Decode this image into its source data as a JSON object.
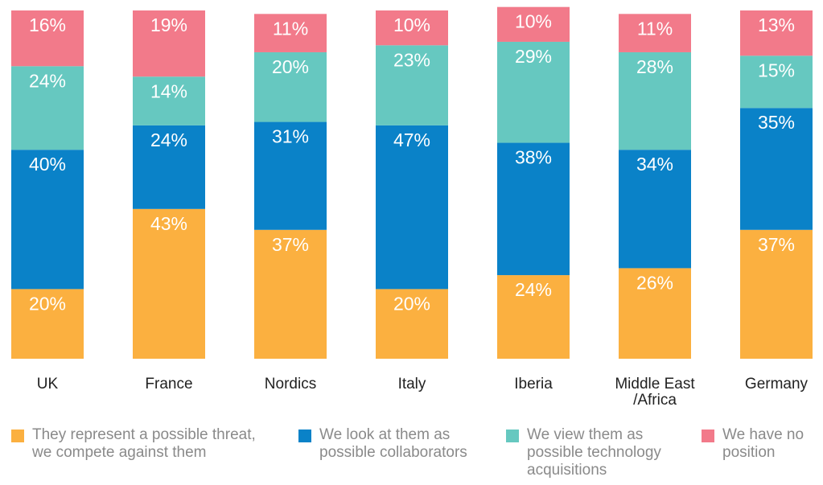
{
  "chart_data": {
    "type": "bar",
    "stacked": true,
    "percent": true,
    "categories": [
      "UK",
      "France",
      "Nordics",
      "Italy",
      "Iberia",
      "Middle East /Africa",
      "Germany"
    ],
    "category_lines": [
      [
        "UK"
      ],
      [
        "France"
      ],
      [
        "Nordics"
      ],
      [
        "Italy"
      ],
      [
        "Iberia"
      ],
      [
        "Middle East",
        "/Africa"
      ],
      [
        "Germany"
      ]
    ],
    "series": [
      {
        "name": "They represent a possible threat, we compete against them",
        "color": "#FBB040",
        "values": [
          20,
          43,
          37,
          20,
          24,
          26,
          37
        ]
      },
      {
        "name": "We look at them as possible collaborators",
        "color": "#0A82C8",
        "values": [
          40,
          24,
          31,
          47,
          38,
          34,
          35
        ]
      },
      {
        "name": "We view them as possible technology acquisitions",
        "color": "#66C8C0",
        "values": [
          24,
          14,
          20,
          23,
          29,
          28,
          15
        ]
      },
      {
        "name": "We have no position",
        "color": "#F27A8A",
        "values": [
          16,
          19,
          11,
          10,
          10,
          11,
          13
        ]
      }
    ],
    "ylim": [
      0,
      100
    ],
    "legend_position": "bottom",
    "grid": false
  },
  "legend": [
    {
      "lines": [
        "They represent a possible threat,",
        "we compete against them"
      ],
      "color": "#FBB040",
      "icon": "square"
    },
    {
      "lines": [
        "We look at them as",
        "possible collaborators"
      ],
      "color": "#0A82C8",
      "icon": "square"
    },
    {
      "lines": [
        "We view them as",
        "possible technology",
        "acquisitions"
      ],
      "color": "#66C8C0",
      "icon": "square"
    },
    {
      "lines": [
        "We have no",
        "position"
      ],
      "color": "#F27A8A",
      "icon": "square"
    }
  ]
}
